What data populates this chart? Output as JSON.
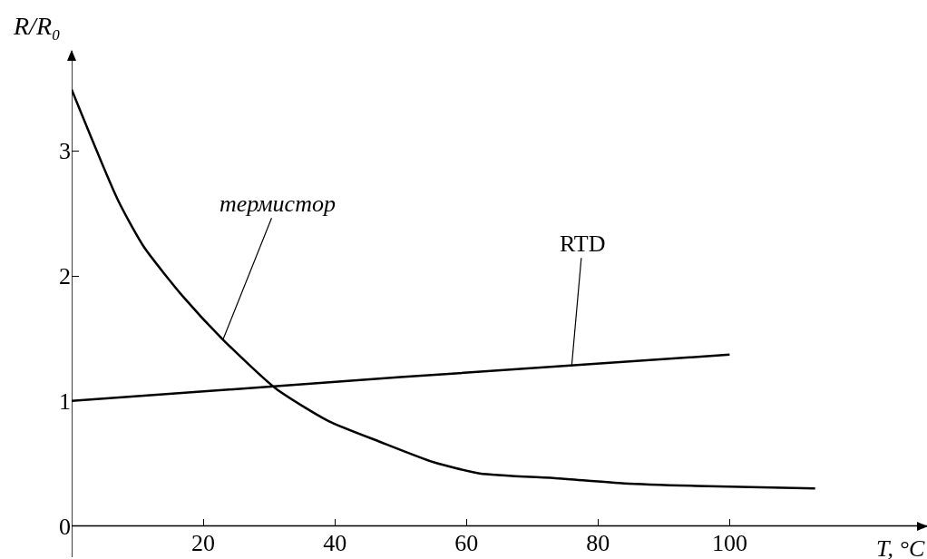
{
  "chart_data": {
    "type": "line",
    "xlabel": "T, °C",
    "ylabel": "R/R₀",
    "xlim": [
      0,
      130
    ],
    "ylim": [
      -0.25,
      3.8
    ],
    "xticks": [
      20,
      40,
      60,
      80,
      100
    ],
    "yticks": [
      0,
      1,
      2,
      3
    ],
    "marker": "none",
    "line_style": "solid",
    "series": [
      {
        "color": "#000000",
        "x": [
          0,
          7,
          11,
          17,
          23,
          31,
          39,
          47,
          55,
          62,
          74,
          84,
          95,
          113
        ],
        "values": [
          3.49,
          2.61,
          2.23,
          1.83,
          1.49,
          1.1,
          0.84,
          0.67,
          0.51,
          0.42,
          0.38,
          0.34,
          0.32,
          0.3
        ]
      },
      {
        "color": "#000000",
        "x": [
          0,
          50,
          100
        ],
        "values": [
          1.0,
          1.19,
          1.37
        ]
      }
    ],
    "annotations": [
      {
        "text": "термистор",
        "x": 23,
        "y": 1.49
      },
      {
        "text": "RTD",
        "x": 76,
        "y": 1.28
      }
    ]
  }
}
